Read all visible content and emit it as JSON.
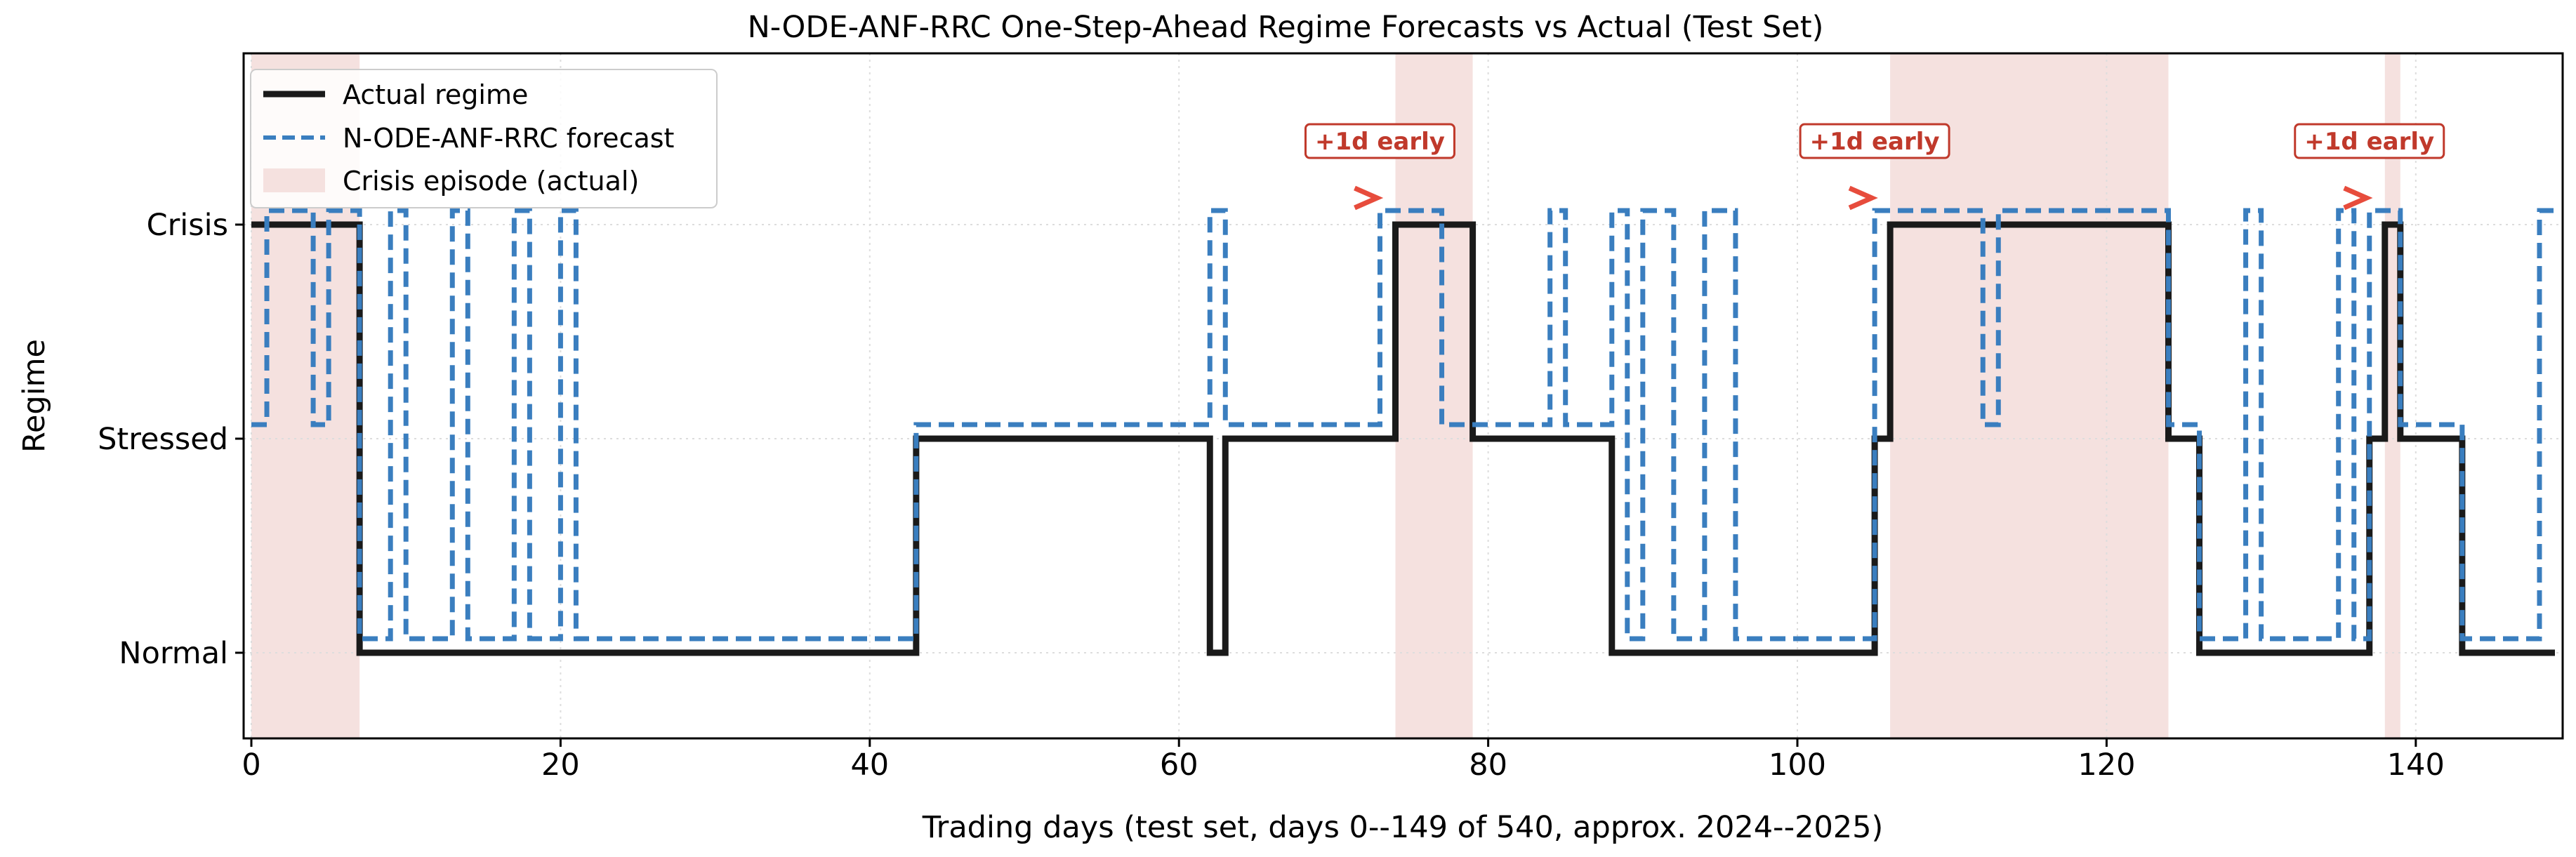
{
  "chart_data": {
    "type": "line",
    "title": "N-ODE-ANF-RRC One-Step-Ahead Regime Forecasts vs Actual (Test Set)",
    "xlabel": "Trading days (test set, days 0--149 of 540, approx. 2024--2025)",
    "ylabel": "Regime",
    "xlim": [
      -0.5,
      149.5
    ],
    "ylim": [
      -0.4,
      2.8
    ],
    "x_ticks": [
      0,
      20,
      40,
      60,
      80,
      100,
      120,
      140
    ],
    "y_ticks": [
      {
        "value": 0,
        "label": "Normal"
      },
      {
        "value": 1,
        "label": "Stressed"
      },
      {
        "value": 2,
        "label": "Crisis"
      }
    ],
    "grid": true,
    "legend_position": "top-left",
    "series": [
      {
        "name": "Actual regime",
        "style": "solid",
        "color": "#1a1a1a",
        "step_where": "post",
        "segments": [
          [
            0,
            2
          ],
          [
            7,
            0
          ],
          [
            43,
            1
          ],
          [
            62,
            0
          ],
          [
            63,
            1
          ],
          [
            74,
            2
          ],
          [
            79,
            1
          ],
          [
            88,
            0
          ],
          [
            105,
            1
          ],
          [
            106,
            2
          ],
          [
            124,
            1
          ],
          [
            126,
            0
          ],
          [
            137,
            1
          ],
          [
            138,
            2
          ],
          [
            139,
            1
          ],
          [
            143,
            0
          ],
          [
            149,
            0
          ]
        ]
      },
      {
        "name": "N-ODE-ANF-RRC forecast",
        "style": "dashed",
        "color": "#3a7ebf",
        "step_where": "post",
        "segments": [
          [
            0,
            1
          ],
          [
            1,
            2
          ],
          [
            4,
            1
          ],
          [
            5,
            2
          ],
          [
            7,
            0
          ],
          [
            9,
            2
          ],
          [
            10,
            0
          ],
          [
            13,
            2
          ],
          [
            14,
            0
          ],
          [
            17,
            2
          ],
          [
            18,
            0
          ],
          [
            20,
            2
          ],
          [
            21,
            0
          ],
          [
            43,
            1
          ],
          [
            62,
            2
          ],
          [
            63,
            1
          ],
          [
            73,
            2
          ],
          [
            77,
            1
          ],
          [
            84,
            2
          ],
          [
            85,
            1
          ],
          [
            88,
            2
          ],
          [
            89,
            0
          ],
          [
            90,
            2
          ],
          [
            92,
            0
          ],
          [
            94,
            2
          ],
          [
            96,
            0
          ],
          [
            105,
            2
          ],
          [
            112,
            1
          ],
          [
            113,
            2
          ],
          [
            124,
            1
          ],
          [
            126,
            0
          ],
          [
            129,
            2
          ],
          [
            130,
            0
          ],
          [
            135,
            2
          ],
          [
            136,
            0
          ],
          [
            137,
            2
          ],
          [
            139,
            1
          ],
          [
            143,
            0
          ],
          [
            148,
            2
          ],
          [
            149,
            2
          ]
        ]
      }
    ],
    "shaded_regions": {
      "name": "Crisis episode (actual)",
      "color": "#f5e1df",
      "spans": [
        [
          0,
          7
        ],
        [
          74,
          79
        ],
        [
          106,
          124
        ],
        [
          138,
          139
        ]
      ]
    },
    "annotations": [
      {
        "text": "+1d early",
        "x": 73,
        "y": 2,
        "label_x": 73,
        "label_y": 2.39
      },
      {
        "text": "+1d early",
        "x": 105,
        "y": 2,
        "label_x": 105,
        "label_y": 2.39
      },
      {
        "text": "+1d early",
        "x": 137,
        "y": 2,
        "label_x": 137,
        "label_y": 2.39
      }
    ],
    "annotation_color": "#c0392b",
    "arrow_color": "#e74c3c"
  }
}
